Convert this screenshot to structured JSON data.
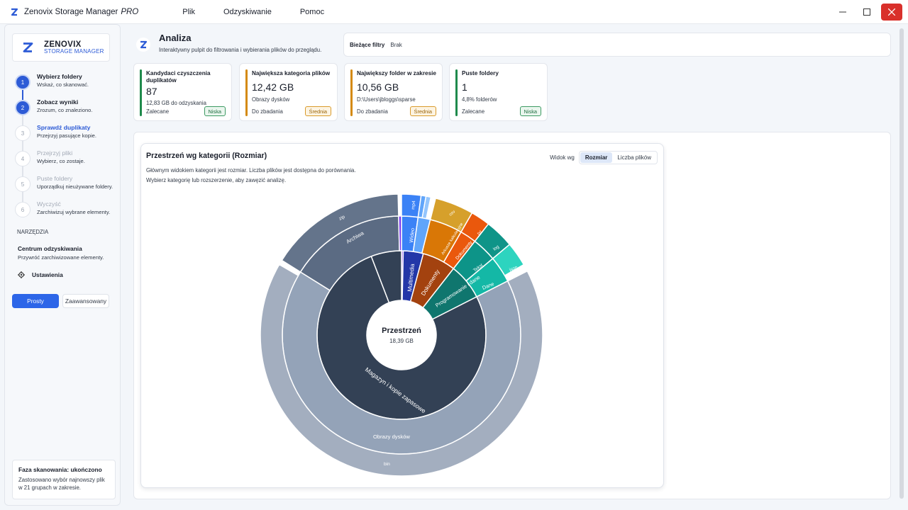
{
  "titlebar": {
    "app_title": "Zenovix Storage Manager",
    "app_badge": "PRO",
    "menu": [
      "Plik",
      "Odzyskiwanie",
      "Pomoc"
    ]
  },
  "sidebar": {
    "brand_name": "ZENOVIX",
    "brand_sub": "STORAGE MANAGER",
    "steps": [
      {
        "num": "1",
        "title": "Wybierz foldery",
        "desc": "Wskaż, co skanować."
      },
      {
        "num": "2",
        "title": "Zobacz wyniki",
        "desc": "Zrozum, co znaleziono."
      },
      {
        "num": "3",
        "title": "Sprawdź duplikaty",
        "desc": "Przejrzyj pasujące kopie."
      },
      {
        "num": "4",
        "title": "Przejrzyj pliki",
        "desc": "Wybierz, co zostaje."
      },
      {
        "num": "5",
        "title": "Puste foldery",
        "desc": "Uporządkuj nieużywane foldery."
      },
      {
        "num": "6",
        "title": "Wyczyść",
        "desc": "Zarchiwizuj wybrane elementy."
      }
    ],
    "tools_header": "NARZĘDZIA",
    "recovery_title": "Centrum odzyskiwania",
    "recovery_desc": "Przywróć zarchiwizowane elementy.",
    "settings_label": "Ustawienia",
    "mode_simple": "Prosty",
    "mode_advanced": "Zaawansowany",
    "scan_title": "Faza skanowania: ukończono",
    "scan_desc": "Zastosowano wybór najnowszy plik w 21 grupach w zakresie."
  },
  "header": {
    "title": "Analiza",
    "subtitle": "Interaktywny pulpit do filtrowania i wybierania plików do przeglądu.",
    "filters_label": "Bieżące filtry",
    "filters_value": "Brak"
  },
  "kpis": [
    {
      "title": "Kandydaci czyszczenia duplikatów",
      "value": "87",
      "sub": "12,83 GB do odzyskania",
      "foot": "Zalecane",
      "badge": "Niska",
      "color": "#1f8a4c"
    },
    {
      "title": "Największa kategoria plików",
      "value": "12,42 GB",
      "sub": "Obrazy dysków",
      "foot": "Do zbadania",
      "badge": "Średnia",
      "color": "#d48a12"
    },
    {
      "title": "Największy folder w zakresie",
      "value": "10,56 GB",
      "sub": "D:\\Users\\jbloggs\\sparse",
      "foot": "Do zbadania",
      "badge": "Średnia",
      "color": "#d48a12"
    },
    {
      "title": "Puste foldery",
      "value": "1",
      "sub": "4,8% folderów",
      "foot": "Zalecane",
      "badge": "Niska",
      "color": "#1f8a4c"
    }
  ],
  "chart": {
    "title": "Przestrzeń wg kategorii (Rozmiar)",
    "desc1": "Głównym widokiem kategorii jest rozmiar. Liczba plików jest dostępna do porównania.",
    "desc2": "Wybierz kategorię lub rozszerzenie, aby zawęzić analizę.",
    "view_label": "Widok wg",
    "view_size": "Rozmiar",
    "view_count": "Liczba plików",
    "center_title": "Przestrzeń",
    "center_value": "18,39 GB"
  },
  "chart_data": {
    "type": "sunburst",
    "total": "18,39 GB",
    "rings": {
      "inner": [
        {
          "name": "Magazyn i kopie zapasowe",
          "value": 76.5,
          "color": "#334155"
        },
        {
          "name": "Multimedia",
          "value": 4.2,
          "color": "#2337a8"
        },
        {
          "name": "Dokumenty",
          "value": 6.3,
          "color": "#a3420f"
        },
        {
          "name": "Programowanie i dane",
          "value": 7.0,
          "color": "#0f766e"
        },
        {
          "name": "",
          "value": 6.0,
          "color": "#3b4b63"
        }
      ]
    },
    "labels": [
      "Magazyn i kopie zapasowe",
      "Obrazy dysków",
      "bin",
      "Archiwa",
      "zip",
      "Multimedia",
      "Wideo",
      "mp4",
      "Dokumenty",
      "Arkusze kalkulacyjne",
      "csv",
      "Dokumenty",
      "txt",
      "Programowanie i dane",
      "Dane",
      "json",
      "Tekst",
      "log"
    ]
  },
  "colors": {
    "accent": "#2d5bd6",
    "close": "#d9302b"
  }
}
